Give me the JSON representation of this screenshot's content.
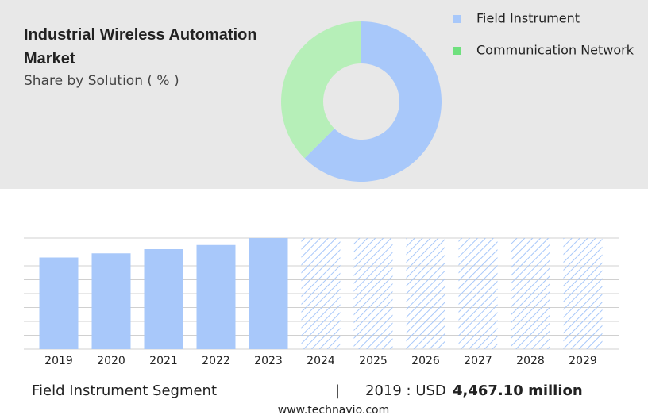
{
  "chart_data": [
    {
      "type": "pie",
      "title": "Industrial Wireless Automation Market",
      "subtitle": "Share by Solution ( % )",
      "categories": [
        "Field Instrument",
        "Communication Network"
      ],
      "values": [
        62.5,
        37.5
      ],
      "colors": [
        "#a8c8fa",
        "#b6efb8"
      ],
      "legend_colors": [
        "#a8c8fa",
        "#6fe07e"
      ],
      "donut": true,
      "legend": "right"
    },
    {
      "type": "bar",
      "categories": [
        "2019",
        "2020",
        "2021",
        "2022",
        "2023",
        "2024",
        "2025",
        "2026",
        "2027",
        "2028",
        "2029"
      ],
      "values": [
        6.6,
        6.9,
        7.2,
        7.5,
        8.0,
        8.0,
        8.0,
        8.0,
        8.0,
        8.0,
        8.0
      ],
      "hatched": [
        false,
        false,
        false,
        false,
        false,
        true,
        true,
        true,
        true,
        true,
        true
      ],
      "color": "#a8c8fa",
      "ylim": [
        0,
        8
      ],
      "yticks": [
        0,
        1,
        2,
        3,
        4,
        5,
        6,
        7,
        8
      ],
      "grid": true
    }
  ],
  "footer": {
    "segment": "Field Instrument Segment",
    "separator": "|",
    "year_label": "2019 : USD",
    "amount": "4,467.10 million",
    "website": "www.technavio.com"
  }
}
